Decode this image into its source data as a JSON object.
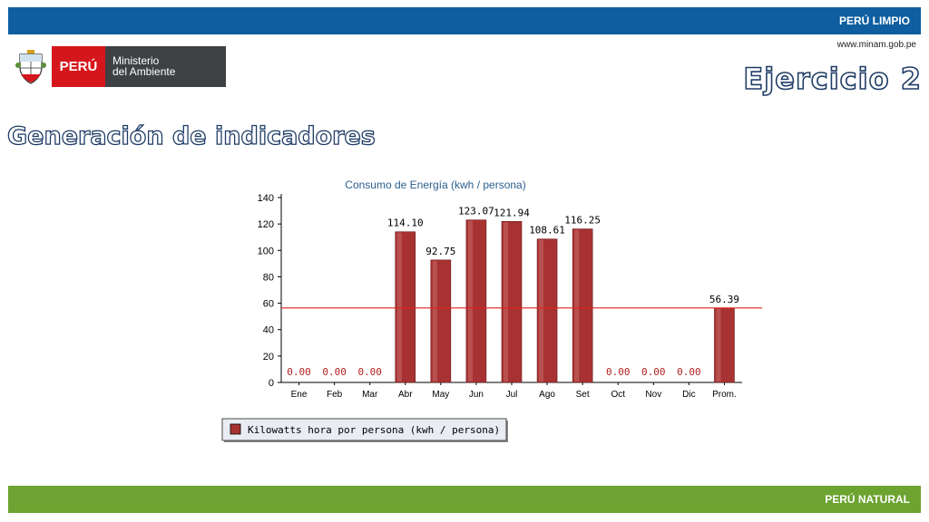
{
  "header": {
    "top_bar_text": "PERÚ LIMPIO",
    "url": "www.minam.gob.pe",
    "logo_country": "PERÚ",
    "logo_ministry_line1": "Ministerio",
    "logo_ministry_line2": "del Ambiente",
    "exercise_title": "Ejercicio 2"
  },
  "main": {
    "heading": "Generación de indicadores"
  },
  "footer": {
    "bottom_bar_text": "PERÚ NATURAL"
  },
  "colors": {
    "top_bar": "#0f5fa0",
    "bottom_bar": "#6da330",
    "bar_fill": "#a83232",
    "reference_line": "#e0221b",
    "title_text": "#2a5f8f"
  },
  "chart_data": {
    "type": "bar",
    "title": "Consumo de Energía (kwh / persona)",
    "categories": [
      "Ene",
      "Feb",
      "Mar",
      "Abr",
      "May",
      "Jun",
      "Jul",
      "Ago",
      "Set",
      "Oct",
      "Nov",
      "Dic",
      "Prom."
    ],
    "series": [
      {
        "name": "Kilowatts hora por persona (kwh / persona)",
        "values": [
          0.0,
          0.0,
          0.0,
          114.1,
          92.75,
          123.07,
          121.94,
          108.61,
          116.25,
          0.0,
          0.0,
          0.0,
          56.39
        ]
      }
    ],
    "value_labels": [
      "0.00",
      "0.00",
      "0.00",
      "114.10",
      "92.75",
      "123.07",
      "121.94",
      "108.61",
      "116.25",
      "0.00",
      "0.00",
      "0.00",
      "56.39"
    ],
    "reference_line": 56.39,
    "ylim": [
      0,
      140
    ],
    "yticks": [
      0,
      20,
      40,
      60,
      80,
      100,
      120,
      140
    ],
    "xlabel": "",
    "ylabel": "",
    "grid": false,
    "legend_position": "bottom-left"
  }
}
